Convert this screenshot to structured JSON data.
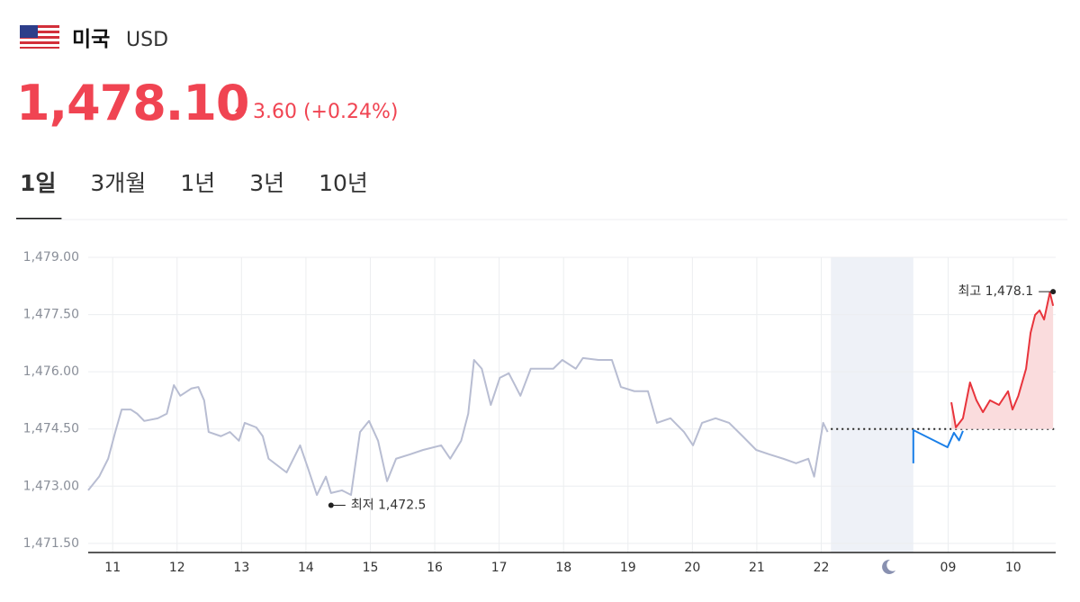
{
  "header": {
    "country": "미국",
    "currency": "USD",
    "price": "1,478.10",
    "change": "3.60 (+0.24%)"
  },
  "tabs": [
    "1일",
    "3개월",
    "1년",
    "3년",
    "10년"
  ],
  "active_tab": 0,
  "chart_data": {
    "type": "line",
    "xlim": [
      -0.38,
      14.64
    ],
    "ylim": [
      1471.26,
      1479
    ],
    "yticks": [
      {
        "value": 1479,
        "label": "1,479.00"
      },
      {
        "value": 1477.5,
        "label": "1,477.50"
      },
      {
        "value": 1476,
        "label": "1,476.00"
      },
      {
        "value": 1474.5,
        "label": "1,474.50"
      },
      {
        "value": 1473,
        "label": "1,473.00"
      },
      {
        "value": 1471.5,
        "label": "1,471.50"
      }
    ],
    "xticks": [
      {
        "value": 0,
        "label": "11"
      },
      {
        "value": 1,
        "label": "12"
      },
      {
        "value": 2,
        "label": "13"
      },
      {
        "value": 3,
        "label": "14"
      },
      {
        "value": 4,
        "label": "15"
      },
      {
        "value": 5,
        "label": "16"
      },
      {
        "value": 6,
        "label": "17"
      },
      {
        "value": 7,
        "label": "18"
      },
      {
        "value": 8,
        "label": "19"
      },
      {
        "value": 9,
        "label": "20"
      },
      {
        "value": 10,
        "label": "21"
      },
      {
        "value": 11,
        "label": "22"
      },
      {
        "value": 12.97,
        "label": "09"
      },
      {
        "value": 13.98,
        "label": "10"
      }
    ],
    "grid": true,
    "session_break": [
      11.15,
      12.43
    ],
    "reference_line": 1474.5,
    "series": [
      {
        "color": "#b8bdd2",
        "x": [
          -0.38,
          -0.21,
          -0.07,
          0.04,
          0.14,
          0.28,
          0.38,
          0.49,
          0.7,
          0.84,
          0.95,
          1.05,
          1.22,
          1.33,
          1.42,
          1.49,
          1.68,
          1.82,
          1.96,
          2.05,
          2.23,
          2.33,
          2.42,
          2.7,
          2.91,
          3.03,
          3.17,
          3.31,
          3.39,
          3.56,
          3.7,
          3.84,
          3.98,
          4.12,
          4.26,
          4.4,
          4.61,
          4.82,
          5.1,
          5.24,
          5.41,
          5.52,
          5.61,
          5.73,
          5.87,
          6.01,
          6.15,
          6.33,
          6.49,
          6.84,
          6.98,
          7.19,
          7.3,
          7.54,
          7.75,
          7.89,
          8.1,
          8.31,
          8.45,
          8.66,
          8.87,
          9.01,
          9.15,
          9.36,
          9.57,
          9.78,
          9.99,
          10.2,
          10.41,
          10.61,
          10.8,
          10.89,
          10.96,
          11.03,
          11.1
        ],
        "values": [
          1472.89,
          1473.25,
          1473.72,
          1474.42,
          1475.01,
          1475.01,
          1474.9,
          1474.71,
          1474.78,
          1474.9,
          1475.65,
          1475.37,
          1475.56,
          1475.6,
          1475.25,
          1474.42,
          1474.31,
          1474.42,
          1474.19,
          1474.66,
          1474.54,
          1474.31,
          1473.72,
          1473.36,
          1474.07,
          1473.48,
          1472.77,
          1473.25,
          1472.82,
          1472.89,
          1472.77,
          1474.42,
          1474.71,
          1474.19,
          1473.13,
          1473.72,
          1473.83,
          1473.95,
          1474.07,
          1473.72,
          1474.19,
          1474.9,
          1476.31,
          1476.08,
          1475.13,
          1475.84,
          1475.96,
          1475.37,
          1476.08,
          1476.08,
          1476.31,
          1476.08,
          1476.36,
          1476.31,
          1476.31,
          1475.6,
          1475.49,
          1475.49,
          1474.66,
          1474.78,
          1474.42,
          1474.07,
          1474.66,
          1474.78,
          1474.66,
          1474.31,
          1473.95,
          1473.83,
          1473.72,
          1473.6,
          1473.72,
          1473.25,
          1473.95,
          1474.66,
          1474.42
        ]
      },
      {
        "color": "#1a7fe8",
        "x": [
          12.43,
          12.43,
          12.96,
          13.06,
          13.14,
          13.2
        ],
        "values": [
          1473.6,
          1474.47,
          1474.02,
          1474.4,
          1474.2,
          1474.45
        ]
      },
      {
        "color": "#e8343c",
        "fill": "#fadcdd",
        "x": [
          13.02,
          13.09,
          13.2,
          13.31,
          13.41,
          13.51,
          13.62,
          13.76,
          13.9,
          13.97,
          14.06,
          14.18,
          14.25,
          14.32,
          14.39,
          14.46,
          14.55,
          14.6
        ],
        "values": [
          1475.2,
          1474.54,
          1474.78,
          1475.72,
          1475.25,
          1474.94,
          1475.25,
          1475.13,
          1475.49,
          1475.01,
          1475.37,
          1476.08,
          1477.02,
          1477.49,
          1477.61,
          1477.37,
          1478.08,
          1477.73
        ]
      }
    ],
    "annotations": [
      {
        "x": 3.39,
        "value": 1472.5,
        "label": "최저 1,472.5",
        "side": "right"
      },
      {
        "x": 14.6,
        "value": 1478.1,
        "label": "최고 1,478.1",
        "side": "left"
      }
    ]
  }
}
